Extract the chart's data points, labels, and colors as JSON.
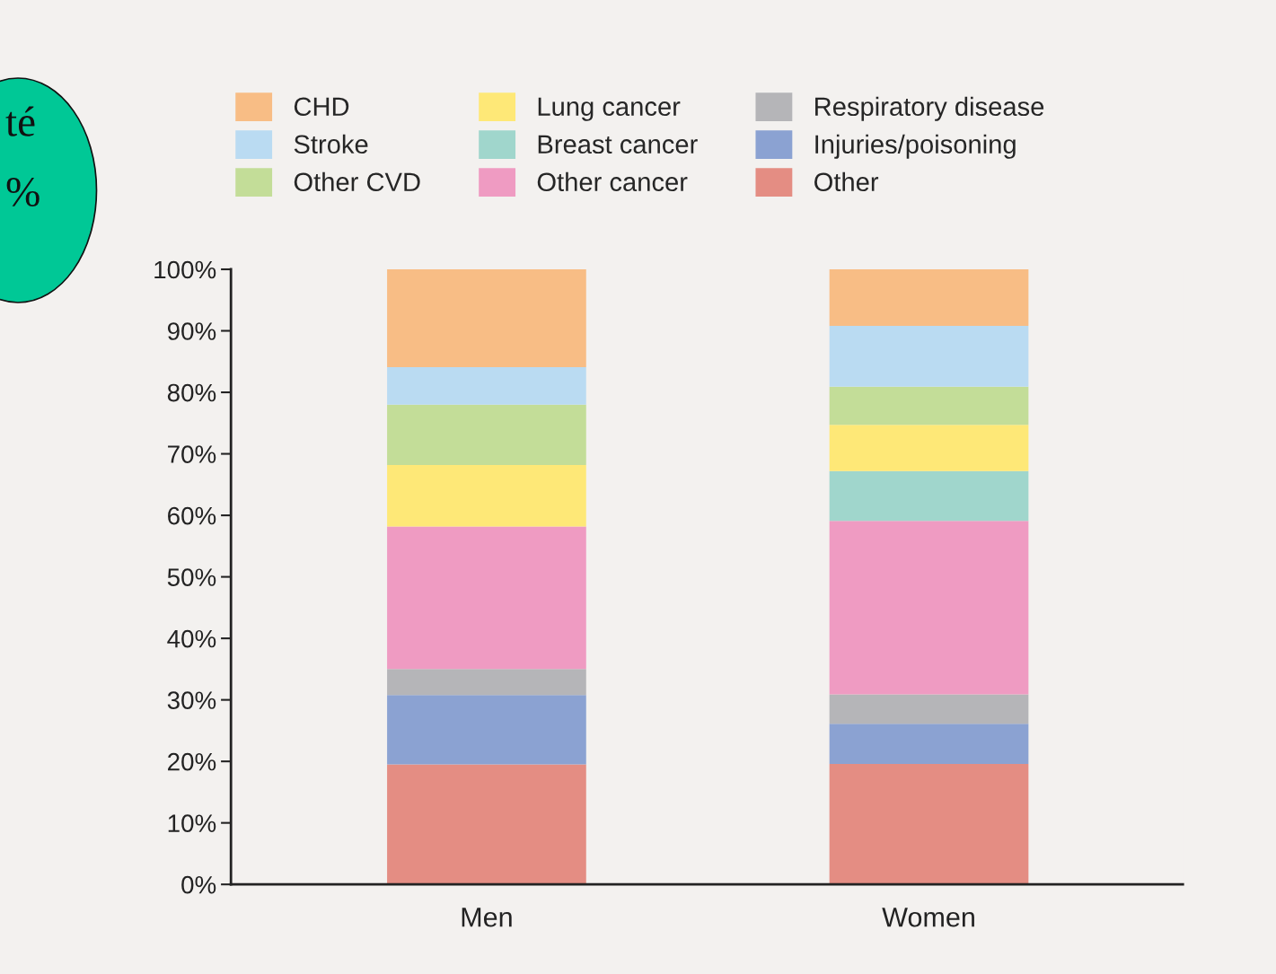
{
  "chart_data": {
    "type": "bar",
    "stacked": true,
    "categories": [
      "Men",
      "Women"
    ],
    "series": [
      {
        "name": "Other",
        "color": "#e48d83",
        "values": [
          19.5,
          19.6
        ]
      },
      {
        "name": "Injuries/poisoning",
        "color": "#8ba2d2",
        "values": [
          11.3,
          6.5
        ]
      },
      {
        "name": "Respiratory disease",
        "color": "#b5b5b8",
        "values": [
          4.2,
          4.8
        ]
      },
      {
        "name": "Other cancer",
        "color": "#ef9bc2",
        "values": [
          23.2,
          28.2
        ]
      },
      {
        "name": "Breast cancer",
        "color": "#a0d6cc",
        "values": [
          0,
          8.1
        ]
      },
      {
        "name": "Lung cancer",
        "color": "#fee877",
        "values": [
          10.0,
          7.5
        ]
      },
      {
        "name": "Other CVD",
        "color": "#c3dd98",
        "values": [
          9.8,
          6.2
        ]
      },
      {
        "name": "Stroke",
        "color": "#badbf2",
        "values": [
          6.1,
          9.9
        ]
      },
      {
        "name": "CHD",
        "color": "#f8bd85",
        "values": [
          15.9,
          9.2
        ]
      }
    ],
    "ylim": [
      0,
      100
    ],
    "yticks": [
      {
        "value": 0,
        "label": "0%"
      },
      {
        "value": 10,
        "label": "10%"
      },
      {
        "value": 20,
        "label": "20%"
      },
      {
        "value": 30,
        "label": "30%"
      },
      {
        "value": 40,
        "label": "40%"
      },
      {
        "value": 50,
        "label": "50%"
      },
      {
        "value": 60,
        "label": "60%"
      },
      {
        "value": 70,
        "label": "70%"
      },
      {
        "value": 80,
        "label": "80%"
      },
      {
        "value": 90,
        "label": "90%"
      },
      {
        "value": 100,
        "label": "100%"
      }
    ],
    "grid": false,
    "legend": "top",
    "annotations": [
      "té",
      "%"
    ]
  }
}
